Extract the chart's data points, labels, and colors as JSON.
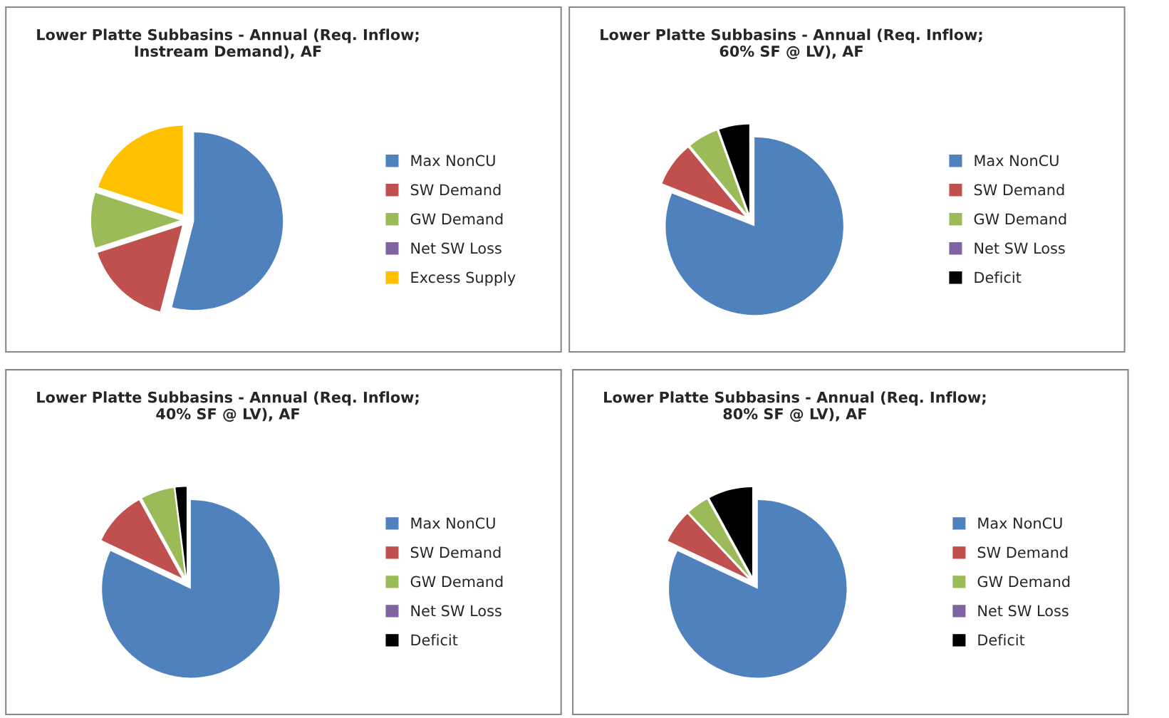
{
  "chart_data": [
    {
      "type": "pie",
      "title": "Lower Platte Subbasins - Annual (Req. Inflow;\nInstream Demand), AF",
      "categories": [
        "Max NonCU",
        "SW Demand",
        "GW Demand",
        "Net SW Loss",
        "Excess Supply"
      ],
      "values": [
        54,
        16,
        10,
        0,
        20
      ],
      "colors": [
        "#4f81bd",
        "#c0504d",
        "#9bbb59",
        "#8064a2",
        "#ffc000"
      ],
      "legend": "right"
    },
    {
      "type": "pie",
      "title": "Lower Platte Subbasins - Annual (Req. Inflow;\n60% SF @ LV), AF",
      "categories": [
        "Max NonCU",
        "SW Demand",
        "GW Demand",
        "Net SW Loss",
        "Deficit"
      ],
      "values": [
        81,
        8,
        5.5,
        0,
        5.5
      ],
      "colors": [
        "#4f81bd",
        "#c0504d",
        "#9bbb59",
        "#8064a2",
        "#000000"
      ],
      "legend": "right"
    },
    {
      "type": "pie",
      "title": "Lower Platte Subbasins - Annual (Req. Inflow;\n40% SF @ LV), AF",
      "categories": [
        "Max NonCU",
        "SW Demand",
        "GW Demand",
        "Net SW Loss",
        "Deficit"
      ],
      "values": [
        82,
        10,
        6,
        0,
        2
      ],
      "colors": [
        "#4f81bd",
        "#c0504d",
        "#9bbb59",
        "#8064a2",
        "#000000"
      ],
      "legend": "right"
    },
    {
      "type": "pie",
      "title": "Lower Platte Subbasins - Annual (Req. Inflow;\n80% SF @ LV), AF",
      "categories": [
        "Max NonCU",
        "SW Demand",
        "GW Demand",
        "Net SW Loss",
        "Deficit"
      ],
      "values": [
        82,
        6,
        4,
        0,
        8
      ],
      "colors": [
        "#4f81bd",
        "#c0504d",
        "#9bbb59",
        "#8064a2",
        "#000000"
      ],
      "legend": "right"
    }
  ]
}
